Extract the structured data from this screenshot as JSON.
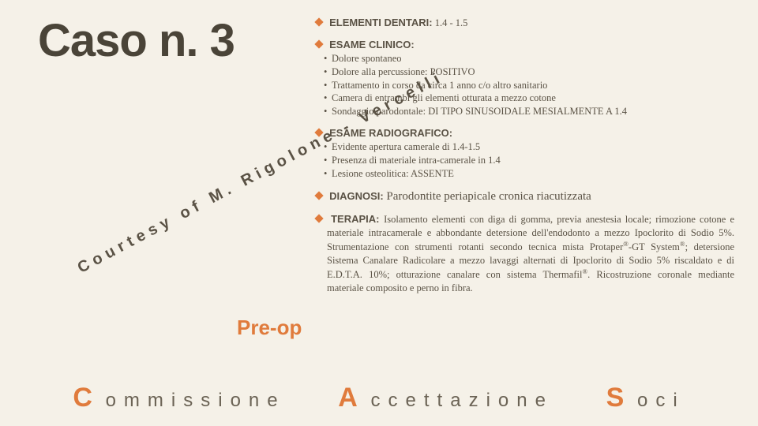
{
  "colors": {
    "accent": "#e07b3c",
    "text": "#5a5245",
    "dark": "#4a4438",
    "bg": "#f5f1e8"
  },
  "title": "Caso n. 3",
  "courtesy": "Courtesy of M. Rigolone - Vercelli",
  "preop": "Pre-op",
  "s1": {
    "head": "ELEMENTI DENTARI:",
    "val": " 1.4 - 1.5"
  },
  "s2": {
    "head": "ESAME CLINICO:",
    "b1": "Dolore spontaneo",
    "b2": "Dolore alla percussione: POSITIVO",
    "b3": "Trattamento in corso da circa 1 anno c/o altro sanitario",
    "b4": "Camera di entrambi gli elementi otturata a mezzo cotone",
    "b5": "Sondaggio parodontale: DI TIPO SINUSOIDALE MESIALMENTE A 1.4"
  },
  "s3": {
    "head": "ESAME RADIOGRAFICO:",
    "b1": "Evidente apertura camerale di 1.4-1.5",
    "b2": "Presenza di materiale intra-camerale in 1.4",
    "b3": "Lesione osteolitica: ASSENTE"
  },
  "s4": {
    "head": "DIAGNOSI: ",
    "val": "Parodontite periapicale cronica riacutizzata"
  },
  "s5": {
    "head": "TERAPIA: ",
    "body_a": "Isolamento elementi con diga di gomma, previa anestesia locale; rimozione cotone e materiale intracamerale e abbondante detersione dell'endodonto a mezzo Ipoclorito di Sodio 5%. Strumentazione con strumenti rotanti secondo tecnica mista Protaper",
    "body_b": "-GT System",
    "body_c": "; detersione Sistema Canalare Radicolare a mezzo lavaggi alternati di Ipoclorito di Sodio 5% riscaldato e di E.D.T.A. 10%; otturazione canalare con sistema Thermafil",
    "body_d": ". Ricostruzione coronale mediante materiale composito e perno in fibra."
  },
  "footer": {
    "c": "C",
    "w1": "ommissione",
    "a": "A",
    "w2": "ccettazione",
    "s": "S",
    "w3": "oci"
  }
}
